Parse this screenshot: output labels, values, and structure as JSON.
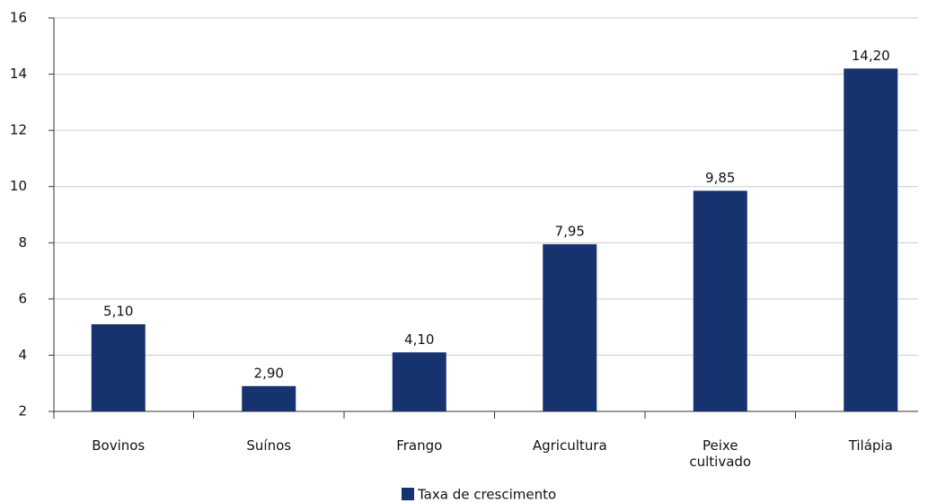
{
  "chart_data": {
    "type": "bar",
    "categories": [
      "Bovinos",
      "Suínos",
      "Frango",
      "Agricultura",
      "Peixe cultivado",
      "Tilápia"
    ],
    "values": [
      5.1,
      2.9,
      4.1,
      7.95,
      9.85,
      14.2
    ],
    "value_labels": [
      "5,10",
      "2,90",
      "4,10",
      "7,95",
      "9,85",
      "14,20"
    ],
    "series_name": "Taxa de crescimento",
    "color": "#16326f",
    "ylim": [
      2,
      16
    ],
    "yticks": [
      2,
      4,
      6,
      8,
      10,
      12,
      14,
      16
    ],
    "grid": true
  }
}
